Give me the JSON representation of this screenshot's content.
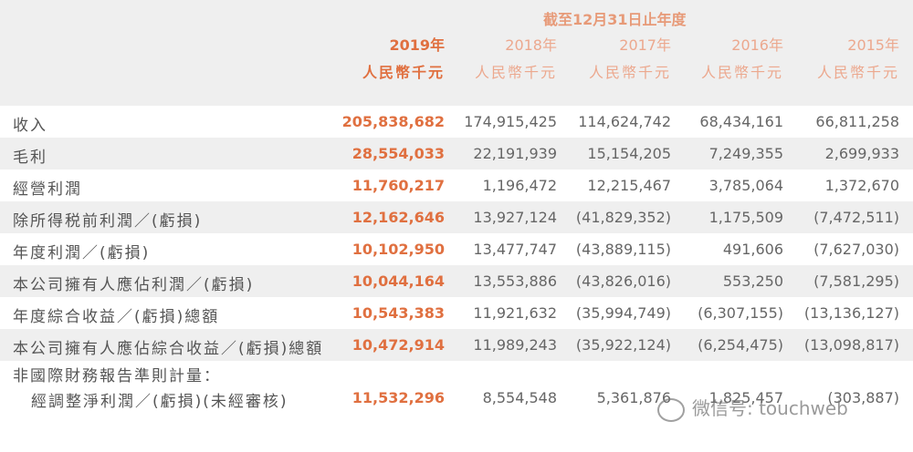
{
  "header": {
    "title": "截至12月31日止年度",
    "columns": [
      {
        "year": "2019年",
        "unit": "人民幣千元"
      },
      {
        "year": "2018年",
        "unit": "人民幣千元"
      },
      {
        "year": "2017年",
        "unit": "人民幣千元"
      },
      {
        "year": "2016年",
        "unit": "人民幣千元"
      },
      {
        "year": "2015年",
        "unit": "人民幣千元"
      }
    ]
  },
  "table": {
    "rows": [
      {
        "label": "收入",
        "values": [
          "205,838,682",
          "174,915,425",
          "114,624,742",
          "68,434,161",
          "66,811,258"
        ]
      },
      {
        "label": "毛利",
        "values": [
          "28,554,033",
          "22,191,939",
          "15,154,205",
          "7,249,355",
          "2,699,933"
        ]
      },
      {
        "label": "經營利潤",
        "values": [
          "11,760,217",
          "1,196,472",
          "12,215,467",
          "3,785,064",
          "1,372,670"
        ]
      },
      {
        "label": "除所得税前利潤／(虧損)",
        "values": [
          "12,162,646",
          "13,927,124",
          "(41,829,352)",
          "1,175,509",
          "(7,472,511)"
        ]
      },
      {
        "label": "年度利潤／(虧損)",
        "values": [
          "10,102,950",
          "13,477,747",
          "(43,889,115)",
          "491,606",
          "(7,627,030)"
        ]
      },
      {
        "label": "本公司擁有人應佔利潤／(虧損)",
        "values": [
          "10,044,164",
          "13,553,886",
          "(43,826,016)",
          "553,250",
          "(7,581,295)"
        ]
      },
      {
        "label": "年度綜合收益／(虧損)總額",
        "values": [
          "10,543,383",
          "11,921,632",
          "(35,994,749)",
          "(6,307,155)",
          "(13,136,127)"
        ]
      },
      {
        "label": "本公司擁有人應佔綜合收益／(虧損)總額",
        "values": [
          "10,472,914",
          "11,989,243",
          "(35,922,124)",
          "(6,254,475)",
          "(13,098,817)"
        ]
      }
    ],
    "section": "非國際財務報告準則計量：",
    "adjusted": {
      "label": "經調整淨利潤／(虧損)(未經審核)",
      "values": [
        "11,532,296",
        "8,554,548",
        "5,361,876",
        "1,825,457",
        "(303,887)"
      ]
    }
  },
  "watermark": "微信号: touchweb"
}
